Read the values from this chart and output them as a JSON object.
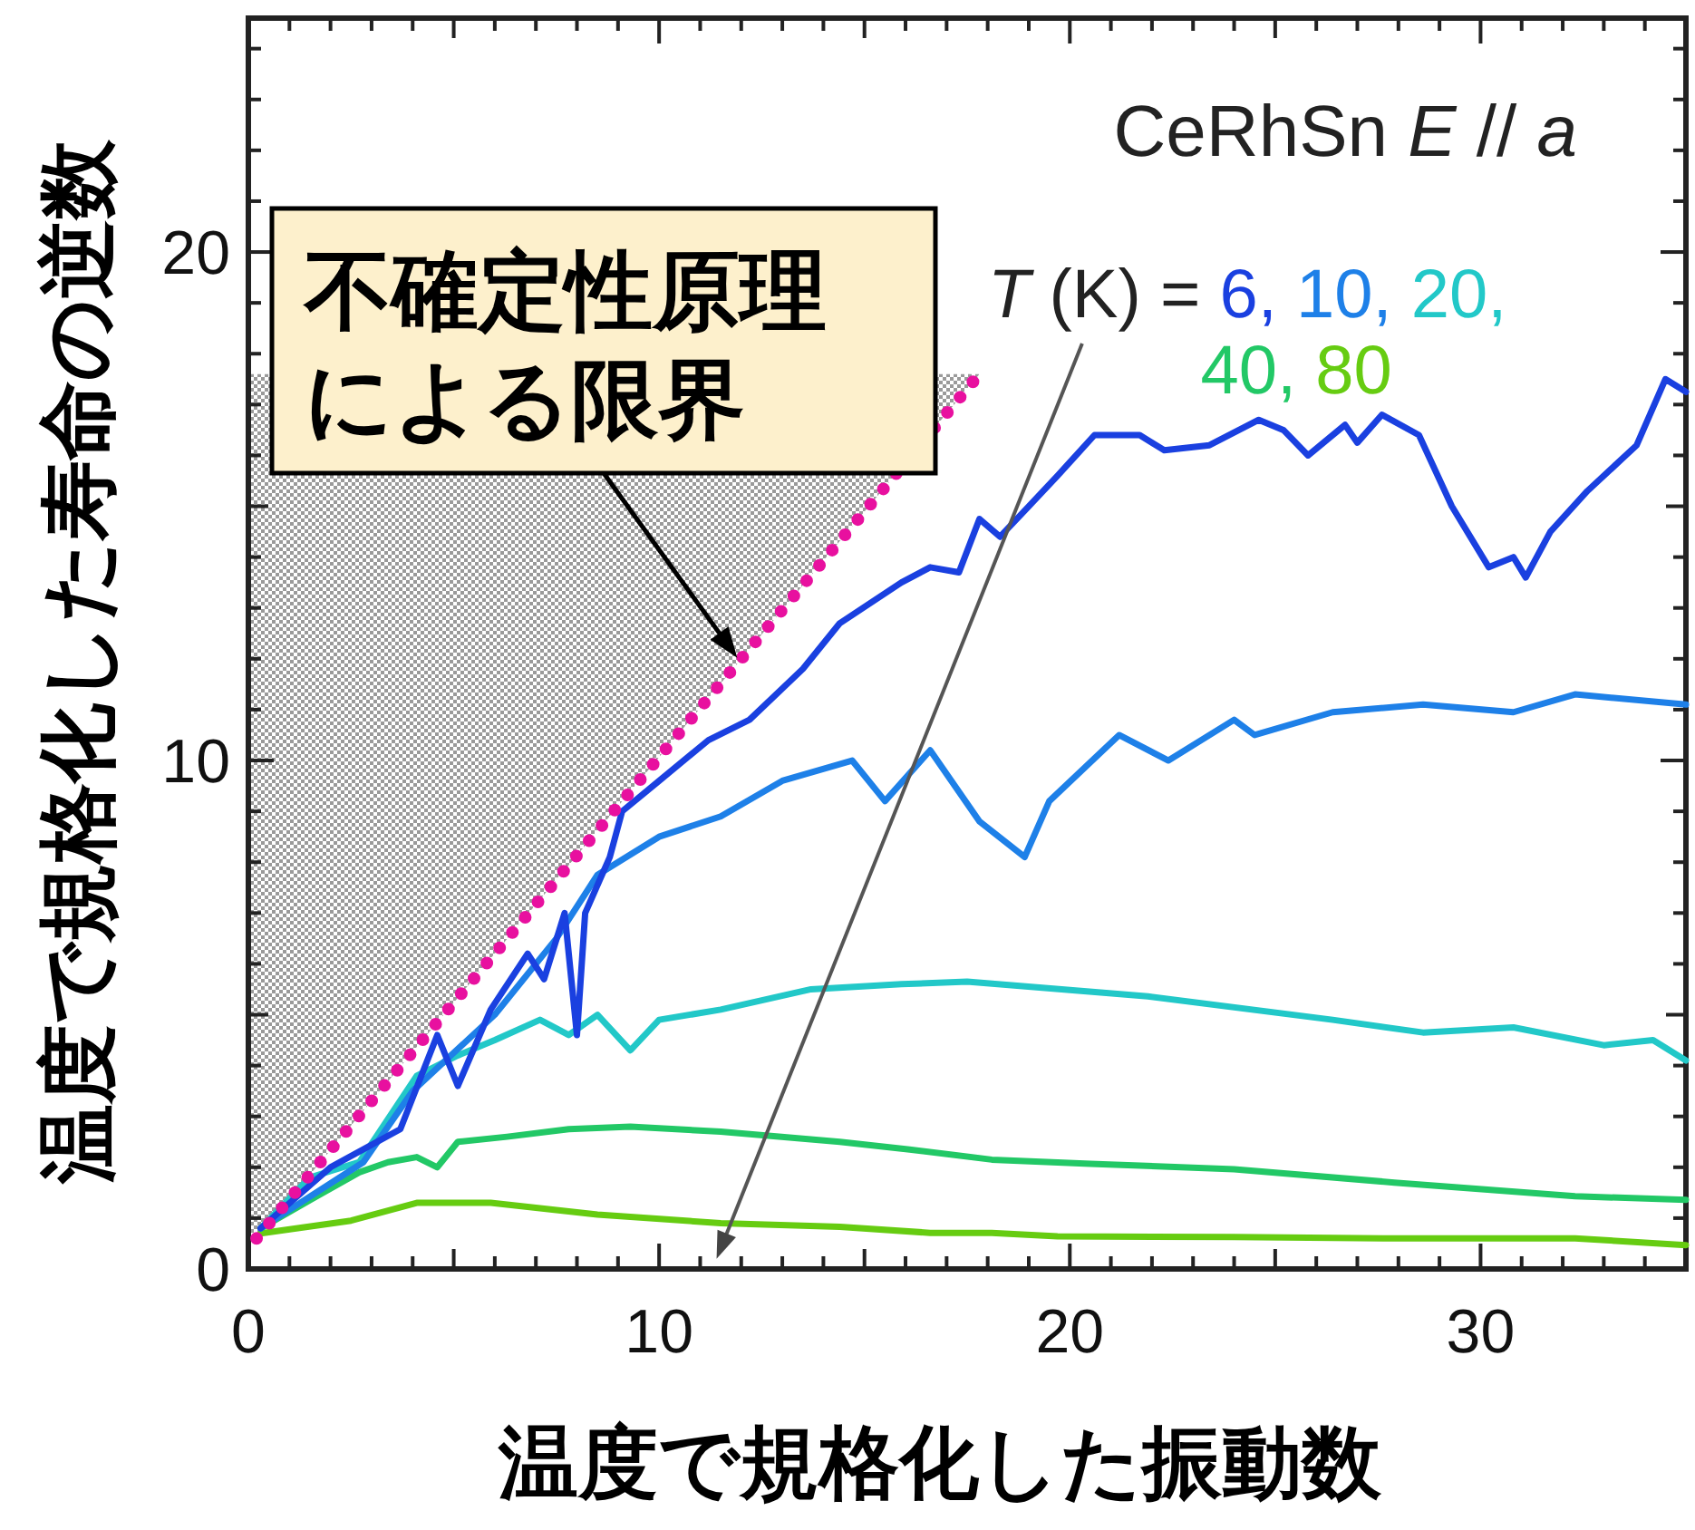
{
  "chart_data": {
    "type": "line",
    "title": "CeRhSn  *E* // *a*",
    "xlabel": "温度で規格化した振動数",
    "ylabel": "温度で規格化した寿命の逆数",
    "legend_title": "*T* (K) =",
    "legend": "top right",
    "xlim": [
      0,
      35
    ],
    "ylim": [
      0,
      24.6
    ],
    "xticks": [
      0,
      {
        "value": 1,
        "label": null
      },
      {
        "value": 2,
        "label": null
      },
      {
        "value": 3,
        "label": null
      },
      {
        "value": 4,
        "label": null
      },
      {
        "value": 5,
        "label": null
      },
      {
        "value": 6,
        "label": null
      },
      {
        "value": 7,
        "label": null
      },
      {
        "value": 8,
        "label": null
      },
      {
        "value": 9,
        "label": null
      },
      10,
      {
        "value": 11,
        "label": null
      },
      {
        "value": 12,
        "label": null
      },
      {
        "value": 13,
        "label": null
      },
      {
        "value": 14,
        "label": null
      },
      {
        "value": 15,
        "label": null
      },
      {
        "value": 16,
        "label": null
      },
      {
        "value": 17,
        "label": null
      },
      {
        "value": 18,
        "label": null
      },
      {
        "value": 19,
        "label": null
      },
      20,
      {
        "value": 21,
        "label": null
      },
      {
        "value": 22,
        "label": null
      },
      {
        "value": 23,
        "label": null
      },
      {
        "value": 24,
        "label": null
      },
      {
        "value": 25,
        "label": null
      },
      {
        "value": 26,
        "label": null
      },
      {
        "value": 27,
        "label": null
      },
      {
        "value": 28,
        "label": null
      },
      {
        "value": 29,
        "label": null
      },
      30,
      {
        "value": 31,
        "label": null
      },
      {
        "value": 32,
        "label": null
      },
      {
        "value": 33,
        "label": null
      },
      {
        "value": 34,
        "label": null
      }
    ],
    "yticks": [
      0,
      {
        "value": 1,
        "label": null
      },
      {
        "value": 2,
        "label": null
      },
      {
        "value": 3,
        "label": null
      },
      {
        "value": 4,
        "label": null
      },
      {
        "value": 5,
        "label": null
      },
      {
        "value": 6,
        "label": null
      },
      {
        "value": 7,
        "label": null
      },
      {
        "value": 8,
        "label": null
      },
      {
        "value": 9,
        "label": null
      },
      10,
      {
        "value": 11,
        "label": null
      },
      {
        "value": 12,
        "label": null
      },
      {
        "value": 13,
        "label": null
      },
      {
        "value": 14,
        "label": null
      },
      {
        "value": 15,
        "label": null
      },
      {
        "value": 16,
        "label": null
      },
      {
        "value": 17,
        "label": null
      },
      {
        "value": 18,
        "label": null
      },
      {
        "value": 19,
        "label": null
      },
      20,
      {
        "value": 21,
        "label": null
      },
      {
        "value": 22,
        "label": null
      },
      {
        "value": 23,
        "label": null
      },
      {
        "value": 24,
        "label": null
      }
    ],
    "annotations": [
      "不確定性原理による限界"
    ],
    "series": [
      {
        "name": "80",
        "color": "#66cc11",
        "x": [
          0.3,
          2.5,
          4.1,
          5.9,
          8.5,
          11.5,
          14.4,
          16.6,
          18.1,
          19.7,
          24,
          28,
          32.3,
          35
        ],
        "values": [
          0.7,
          0.95,
          1.3,
          1.3,
          1.07,
          0.9,
          0.83,
          0.71,
          0.71,
          0.64,
          0.63,
          0.6,
          0.6,
          0.47
        ]
      },
      {
        "name": "40,",
        "color": "#22c866",
        "x": [
          0.3,
          1.6,
          2.7,
          3.4,
          4.1,
          4.6,
          5.1,
          6.3,
          7.8,
          9.3,
          11.5,
          14.4,
          16.1,
          18.1,
          20.5,
          24,
          27.9,
          32.3,
          35
        ],
        "values": [
          0.8,
          1.4,
          1.9,
          2.1,
          2.2,
          2.0,
          2.5,
          2.6,
          2.75,
          2.8,
          2.7,
          2.5,
          2.35,
          2.15,
          2.07,
          1.96,
          1.7,
          1.43,
          1.36
        ]
      },
      {
        "name": "20,",
        "color": "#22c8c8",
        "x": [
          0.3,
          1.5,
          2.7,
          4.1,
          5.1,
          6.0,
          7.1,
          7.8,
          8.5,
          9.3,
          10,
          11.5,
          13.7,
          15.9,
          17.5,
          21.9,
          26.4,
          28.6,
          30.8,
          33,
          34.2,
          35
        ],
        "values": [
          0.8,
          1.8,
          2.1,
          3.8,
          4.2,
          4.5,
          4.9,
          4.6,
          5.0,
          4.3,
          4.9,
          5.1,
          5.5,
          5.6,
          5.65,
          5.36,
          4.9,
          4.65,
          4.75,
          4.4,
          4.5,
          4.1
        ]
      },
      {
        "name": "10,",
        "color": "#1e80e8",
        "x": [
          0.3,
          2.8,
          4,
          6,
          7.5,
          8.5,
          10,
          11.5,
          13,
          14.7,
          15.5,
          16.6,
          17.8,
          18.9,
          19.5,
          21.2,
          22.4,
          24,
          24.5,
          26.4,
          28.6,
          30.8,
          32.3,
          35
        ],
        "values": [
          0.8,
          2.1,
          3.5,
          5.0,
          6.5,
          7.75,
          8.5,
          8.9,
          9.6,
          10.0,
          9.2,
          10.2,
          8.8,
          8.1,
          9.2,
          10.5,
          10.0,
          10.8,
          10.5,
          10.95,
          11.1,
          10.95,
          11.3,
          11.1
        ]
      },
      {
        "name": "6,",
        "color": "#1a40e0",
        "x": [
          0.3,
          2.0,
          3.7,
          4.6,
          5.1,
          5.9,
          6.8,
          7.2,
          7.7,
          8.0,
          8.2,
          8.8,
          9.1,
          10,
          11.2,
          12.2,
          13.5,
          14.4,
          15.9,
          16.6,
          17.3,
          17.8,
          18.3,
          19,
          19.7,
          20.6,
          21.7,
          22.3,
          23.4,
          24.6,
          25.2,
          25.8,
          26.7,
          27,
          27.6,
          28.5,
          29.3,
          30.2,
          30.8,
          31.1,
          31.7,
          32.6,
          33.8,
          34.5,
          35
        ],
        "values": [
          0.8,
          2.0,
          2.75,
          4.6,
          3.6,
          5.1,
          6.2,
          5.7,
          7.0,
          4.6,
          7.0,
          8.1,
          9.0,
          9.6,
          10.4,
          10.8,
          11.8,
          12.7,
          13.5,
          13.8,
          13.7,
          14.75,
          14.4,
          15.0,
          15.6,
          16.4,
          16.4,
          16.1,
          16.2,
          16.7,
          16.5,
          16.0,
          16.6,
          16.25,
          16.8,
          16.4,
          15.0,
          13.8,
          14.0,
          13.6,
          14.5,
          15.3,
          16.2,
          17.5,
          17.25
        ]
      },
      {
        "color": "#e8109f",
        "line_style": "dotted",
        "x": [
          0.2,
          17.8
        ],
        "values": [
          0.6,
          17.6
        ]
      }
    ]
  }
}
